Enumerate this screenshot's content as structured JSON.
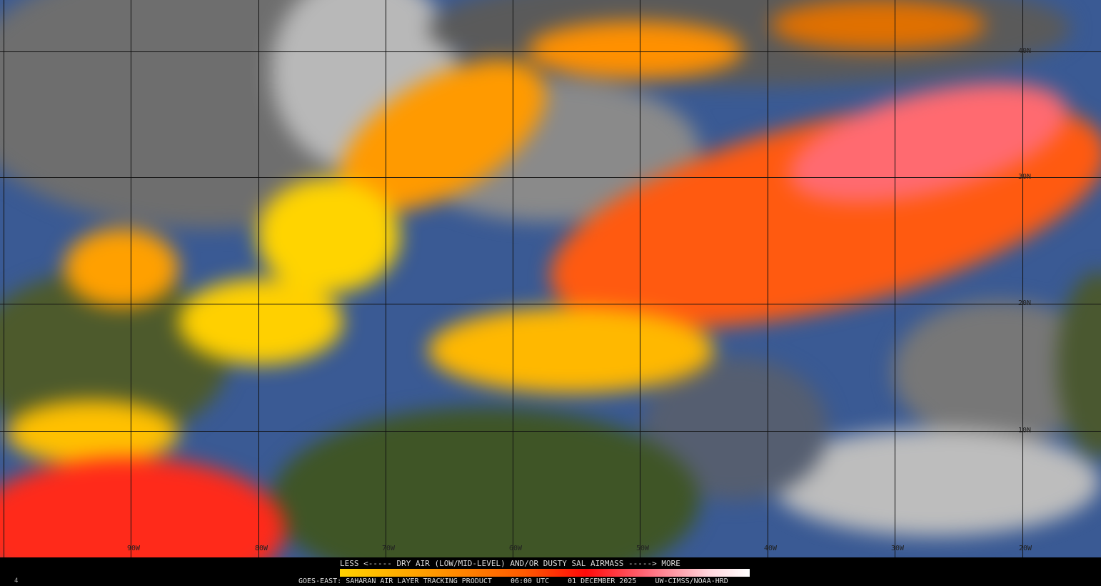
{
  "map": {
    "longitude_labels": [
      "90W",
      "80W",
      "70W",
      "60W",
      "50W",
      "40W",
      "30W",
      "20W"
    ],
    "latitude_labels": [
      "40N",
      "30N",
      "20N",
      "10N"
    ]
  },
  "legend": {
    "title": "LESS <----- DRY AIR (LOW/MID-LEVEL) AND/OR DUSTY SAL AIRMASS -----> MORE",
    "scale_colors": [
      "#ffd200",
      "#ffa000",
      "#ff5a00",
      "#ff0a0a",
      "#ff6a7a",
      "#ffd5dc",
      "#ffffff"
    ]
  },
  "footer": {
    "product": "GOES-EAST: SAHARAN AIR LAYER TRACKING PRODUCT",
    "time": "06:00 UTC",
    "date": "01 DECEMBER 2025",
    "credit": "UW-CIMSS/NOAA-HRD",
    "frame": "4"
  }
}
